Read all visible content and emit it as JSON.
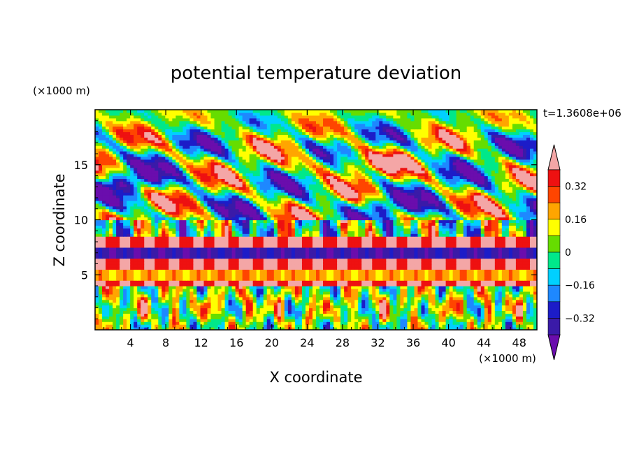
{
  "chart_data": {
    "type": "heatmap",
    "title": "potential temperature deviation",
    "xlabel": "X coordinate",
    "ylabel": "Z coordinate",
    "x_unit_label": "(×1000 m)",
    "y_unit_label": "(×1000 m)",
    "time_label": "t=1.3608e+06",
    "xlim": [
      0,
      50
    ],
    "ylim": [
      0,
      20
    ],
    "x_ticks": [
      "4",
      "8",
      "12",
      "16",
      "20",
      "24",
      "28",
      "32",
      "36",
      "40",
      "44",
      "48"
    ],
    "x_tick_values": [
      4,
      8,
      12,
      16,
      20,
      24,
      28,
      32,
      36,
      40,
      44,
      48
    ],
    "y_ticks": [
      "5",
      "10",
      "15"
    ],
    "y_tick_values": [
      5,
      10,
      15
    ],
    "colorbar": {
      "levels": [
        -0.4,
        -0.32,
        -0.24,
        -0.16,
        -0.08,
        0,
        0.08,
        0.16,
        0.24,
        0.32,
        0.4
      ],
      "tick_labels": [
        "0.32",
        "0.16",
        "0",
        "−0.16",
        "−0.32"
      ],
      "tick_values": [
        0.32,
        0.16,
        0,
        -0.16,
        -0.32
      ],
      "colors": [
        "#6a0dad",
        "#3a1aa8",
        "#1c1cc8",
        "#1e88ff",
        "#00d0ff",
        "#00e88a",
        "#66dd00",
        "#ffff00",
        "#ffa500",
        "#ff4500",
        "#ee1111",
        "#f4a6a6"
      ],
      "extend": "both"
    },
    "bands": [
      {
        "z_range": [
          0,
          4
        ],
        "description": "mixed"
      },
      {
        "z_range": [
          4,
          4.5
        ],
        "value": 0.4
      },
      {
        "z_range": [
          4.5,
          5.5
        ],
        "value": 0.2
      },
      {
        "z_range": [
          5.5,
          6.5
        ],
        "value": 0.4
      },
      {
        "z_range": [
          6.5,
          7.5
        ],
        "value": -0.36
      },
      {
        "z_range": [
          7.5,
          8.5
        ],
        "value": 0.4
      }
    ]
  }
}
